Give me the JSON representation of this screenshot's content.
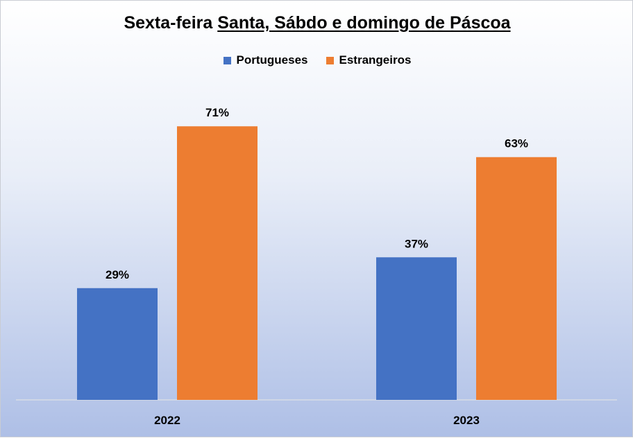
{
  "title": {
    "prefix": "Sexta-feira ",
    "underlined": "Santa, Sábdo e domingo de Páscoa"
  },
  "chart_data": {
    "type": "bar",
    "categories": [
      "2022",
      "2023"
    ],
    "series": [
      {
        "name": "Portugueses",
        "values": [
          29,
          37
        ],
        "labels": [
          "29%",
          "37%"
        ],
        "color": "#4472c4"
      },
      {
        "name": "Estrangeiros",
        "values": [
          71,
          63
        ],
        "labels": [
          "71%",
          "63%"
        ],
        "color": "#ed7d31"
      }
    ],
    "unit": "%",
    "legend": "top-center",
    "grid": false
  }
}
